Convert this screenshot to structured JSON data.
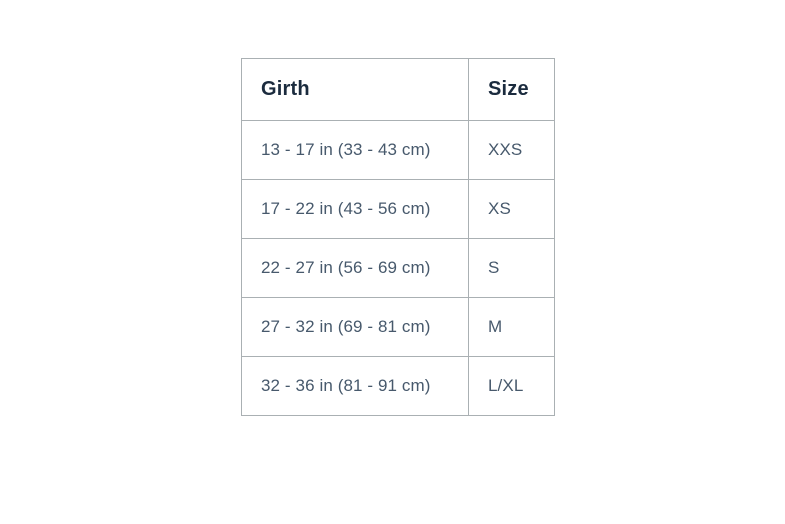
{
  "table": {
    "columns": [
      {
        "label": "Girth"
      },
      {
        "label": "Size"
      }
    ],
    "rows": [
      {
        "girth": "13 - 17 in (33 - 43 cm)",
        "size": "XXS"
      },
      {
        "girth": "17 - 22 in (43 - 56 cm)",
        "size": "XS"
      },
      {
        "girth": "22 - 27 in (56 - 69 cm)",
        "size": "S"
      },
      {
        "girth": "27 - 32 in (69 - 81 cm)",
        "size": "M"
      },
      {
        "girth": "32 - 36 in (81 - 91 cm)",
        "size": "L/XL"
      }
    ]
  },
  "colors": {
    "background": "#ffffff",
    "border": "#aab0b3",
    "header_text": "#1b2b3e",
    "body_text": "#47596c"
  }
}
